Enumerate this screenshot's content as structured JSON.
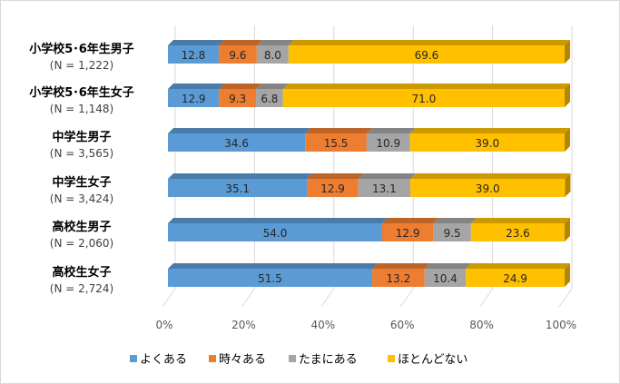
{
  "chart_data": {
    "type": "bar",
    "orientation": "horizontal-stacked-100",
    "categories": [
      "小学校5･6年生男子",
      "小学校5･6年生女子",
      "中学生男子",
      "中学生女子",
      "高校生男子",
      "高校生女子"
    ],
    "sample_sizes": [
      "(N = 1,222)",
      "(N = 1,148)",
      "(N = 3,565)",
      "(N = 3,424)",
      "(N = 2,060)",
      "(N = 2,724)"
    ],
    "series": [
      {
        "name": "よくある",
        "color": "#5B9BD5",
        "values": [
          12.8,
          12.9,
          34.6,
          35.1,
          54.0,
          51.5
        ]
      },
      {
        "name": "時々ある",
        "color": "#ED7D31",
        "values": [
          9.6,
          9.3,
          15.5,
          12.9,
          12.9,
          13.2
        ]
      },
      {
        "name": "たまにある",
        "color": "#A5A5A5",
        "values": [
          8.0,
          6.8,
          10.9,
          13.1,
          9.5,
          10.4
        ]
      },
      {
        "name": "ほとんどない",
        "color": "#FFC000",
        "values": [
          69.6,
          71.0,
          39.0,
          39.0,
          23.6,
          24.9
        ]
      }
    ],
    "xticks": [
      "0%",
      "20%",
      "40%",
      "60%",
      "80%",
      "100%"
    ],
    "xlim": [
      0,
      100
    ],
    "grid": true,
    "legend": "bottom"
  }
}
